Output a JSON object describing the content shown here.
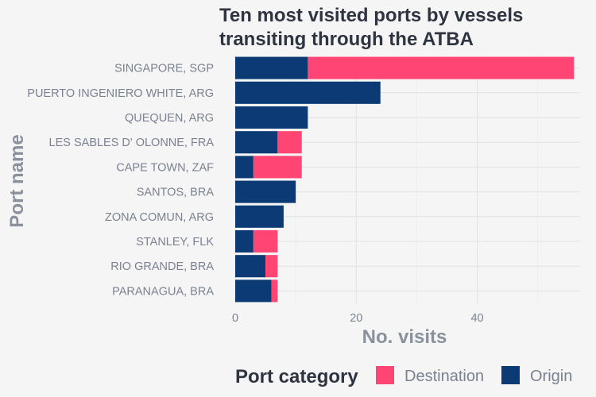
{
  "chart_data": {
    "type": "bar",
    "orientation": "horizontal",
    "stacked": true,
    "title_lines": [
      "Ten most visited ports by vessels",
      "transiting through the ATBA"
    ],
    "xlabel": "No. visits",
    "ylabel": "Port name",
    "xlim": [
      0,
      57
    ],
    "xticks": [
      0,
      20,
      40
    ],
    "grid": true,
    "legend": {
      "title": "Port category",
      "position": "bottom"
    },
    "categories": [
      "SINGAPORE, SGP",
      "PUERTO INGENIERO WHITE, ARG",
      "QUEQUEN, ARG",
      "LES SABLES D' OLONNE, FRA",
      "CAPE TOWN, ZAF",
      "SANTOS, BRA",
      "ZONA COMUN, ARG",
      "STANLEY, FLK",
      "RIO GRANDE, BRA",
      "PARANAGUA, BRA"
    ],
    "series": [
      {
        "name": "Origin",
        "color": "#0b3a75",
        "values": [
          12,
          24,
          12,
          7,
          3,
          10,
          8,
          3,
          5,
          6
        ]
      },
      {
        "name": "Destination",
        "color": "#ff4573",
        "values": [
          44,
          0,
          0,
          4,
          8,
          0,
          0,
          4,
          2,
          1
        ]
      }
    ],
    "legend_order": [
      "Destination",
      "Origin"
    ]
  }
}
